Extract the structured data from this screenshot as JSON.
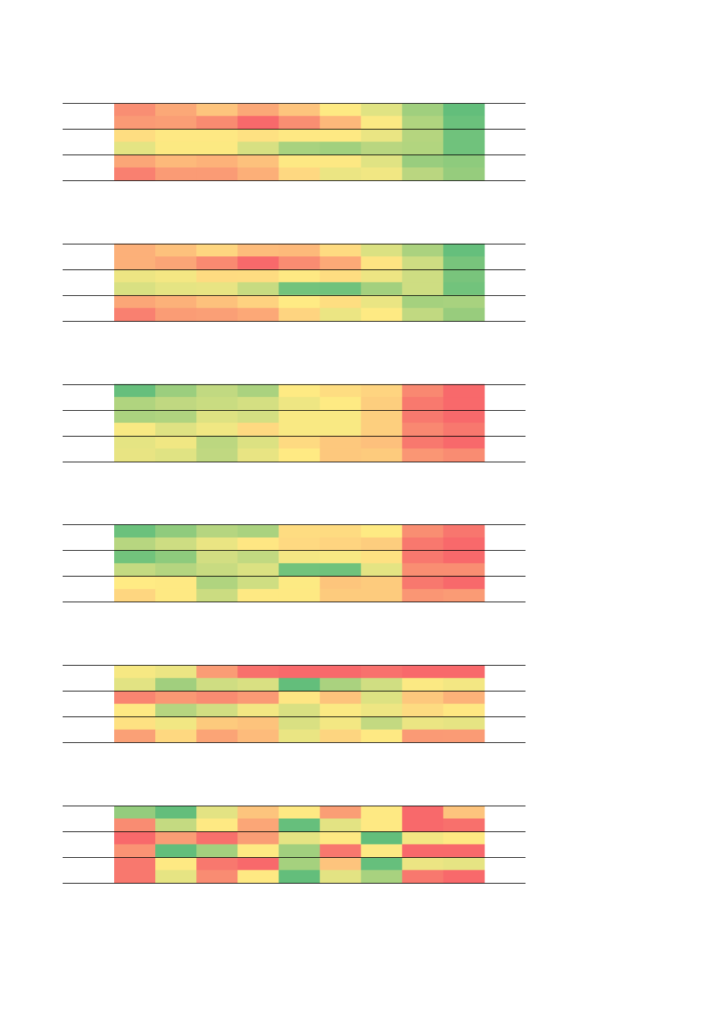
{
  "tables": [
    {
      "cells": [
        [
          "#f98e73",
          "#fba877",
          "#fdc47d",
          "#fba877",
          "#fdc47d",
          "#feea83",
          "#e0e383",
          "#a0cf7e",
          "#63be7b"
        ],
        [
          "#fa9a75",
          "#fa9e75",
          "#f98b71",
          "#f8696b",
          "#f98e72",
          "#fdb87a",
          "#fbe983",
          "#b0d47f",
          "#6bc17c"
        ],
        [
          "#fedd81",
          "#fee883",
          "#fee883",
          "#fee182",
          "#fee883",
          "#fee983",
          "#eae583",
          "#b5d57f",
          "#70c27c"
        ],
        [
          "#e4e483",
          "#fce982",
          "#fce982",
          "#d7e082",
          "#a8d27f",
          "#a2d07e",
          "#b9d680",
          "#b2d57f",
          "#70c27c"
        ],
        [
          "#fba677",
          "#fdb97a",
          "#fdb279",
          "#fdc17c",
          "#fde883",
          "#fde883",
          "#e0e383",
          "#99cd7e",
          "#8ecb7d"
        ],
        [
          "#f98070",
          "#fa9b75",
          "#fa9b75",
          "#fcaf78",
          "#fed881",
          "#ebe583",
          "#f1e783",
          "#bad680",
          "#96cc7d"
        ]
      ]
    },
    {
      "cells": [
        [
          "#fcb079",
          "#fdc17c",
          "#fed680",
          "#fdbc7b",
          "#fdb97a",
          "#fedb81",
          "#dbe182",
          "#abd27f",
          "#65bf7c"
        ],
        [
          "#fcb079",
          "#fba577",
          "#f98a71",
          "#f8696b",
          "#f98c72",
          "#fca977",
          "#fee482",
          "#cedd82",
          "#78c47c"
        ],
        [
          "#ede583",
          "#f4e783",
          "#fedb81",
          "#fedc81",
          "#fee983",
          "#fedd81",
          "#ede583",
          "#cedd82",
          "#79c47c"
        ],
        [
          "#d9e082",
          "#e5e483",
          "#e8e483",
          "#c7db81",
          "#72c37c",
          "#70c27c",
          "#a3d07e",
          "#cedd82",
          "#72c37c"
        ],
        [
          "#fba677",
          "#fcb179",
          "#fdc17c",
          "#fed280",
          "#ffeb84",
          "#fede81",
          "#eae583",
          "#a5d17e",
          "#a8d27f"
        ],
        [
          "#f98070",
          "#fa9c75",
          "#fa9f76",
          "#fca877",
          "#fed480",
          "#ebe583",
          "#feea83",
          "#c1d981",
          "#98cc7d"
        ]
      ]
    },
    {
      "cells": [
        [
          "#66bf7c",
          "#9bce7e",
          "#c1d981",
          "#aad27f",
          "#feea83",
          "#fedd81",
          "#fed480",
          "#f98871",
          "#f8696b"
        ],
        [
          "#b0d47f",
          "#c0d881",
          "#c9dc81",
          "#d4df82",
          "#eee683",
          "#feea83",
          "#fdce7e",
          "#f8796e",
          "#f8696b"
        ],
        [
          "#abd27f",
          "#b0d47f",
          "#dee282",
          "#d4df82",
          "#f9e983",
          "#f9e983",
          "#fdcf7e",
          "#f8796e",
          "#f8696b"
        ],
        [
          "#f8e983",
          "#dfe283",
          "#f0e783",
          "#fed981",
          "#f9e983",
          "#f9e983",
          "#fdcf7e",
          "#f98871",
          "#f8786e"
        ],
        [
          "#e5e483",
          "#f0e783",
          "#bcd780",
          "#dce182",
          "#feda81",
          "#fdc87d",
          "#fdc07c",
          "#f8786e",
          "#f8696b"
        ],
        [
          "#e8e483",
          "#e0e383",
          "#c0d881",
          "#e8e483",
          "#ffea83",
          "#fdc87d",
          "#fdcb7d",
          "#fa9674",
          "#f98c72"
        ]
      ]
    },
    {
      "cells": [
        [
          "#6bc17c",
          "#8fcb7d",
          "#b5d580",
          "#aad27f",
          "#fedc81",
          "#fedb81",
          "#feea83",
          "#f98e72",
          "#f8766e"
        ],
        [
          "#b7d680",
          "#cddd82",
          "#eae583",
          "#fee683",
          "#fed981",
          "#fed480",
          "#fdcd7e",
          "#f8786e",
          "#f8696b"
        ],
        [
          "#72c37c",
          "#8ecb7d",
          "#d2de82",
          "#c1d981",
          "#f4e783",
          "#f8e883",
          "#fee182",
          "#f8786e",
          "#f8696b"
        ],
        [
          "#c4da81",
          "#b5d580",
          "#c8db81",
          "#dbe182",
          "#72c37c",
          "#6fc27c",
          "#e4e483",
          "#f98e72",
          "#f98e72"
        ],
        [
          "#ffeb84",
          "#fee983",
          "#b0d47f",
          "#cfde82",
          "#fdea83",
          "#fdc57c",
          "#fdcb7d",
          "#f8786e",
          "#f8696b"
        ],
        [
          "#fed680",
          "#fee983",
          "#cbdc81",
          "#fee983",
          "#fee983",
          "#fdcb7d",
          "#fdcb7d",
          "#fa9674",
          "#fa9b75"
        ]
      ]
    },
    {
      "cells": [
        [
          "#f6e883",
          "#ece583",
          "#fa9c75",
          "#f8706c",
          "#f8696b",
          "#f8696b",
          "#f8716d",
          "#f8696b",
          "#f8696b"
        ],
        [
          "#e2e383",
          "#a1cf7e",
          "#cfdd82",
          "#d9e082",
          "#63be7b",
          "#aad27f",
          "#d0de82",
          "#fbe983",
          "#f3e783"
        ],
        [
          "#f98571",
          "#fa9874",
          "#f98c72",
          "#fa9a75",
          "#fee683",
          "#fdc37c",
          "#dde282",
          "#fdc87d",
          "#fcb279"
        ],
        [
          "#fee983",
          "#b6d580",
          "#d2de82",
          "#f3e783",
          "#d9e082",
          "#fbe983",
          "#eee683",
          "#fddb81",
          "#fee782"
        ],
        [
          "#fee182",
          "#f1e783",
          "#fdca7d",
          "#fdc37c",
          "#d9e082",
          "#f3e783",
          "#c3d981",
          "#ebe583",
          "#e6e483"
        ],
        [
          "#faa076",
          "#fed880",
          "#fba476",
          "#fdbb7b",
          "#eae583",
          "#fdd580",
          "#fee983",
          "#fa9a75",
          "#fa9b75"
        ]
      ]
    },
    {
      "cells": [
        [
          "#94cc7d",
          "#63be7b",
          "#e3e383",
          "#fdc47d",
          "#fee983",
          "#fa9e75",
          "#fee983",
          "#f8696b",
          "#fdc47d"
        ],
        [
          "#f98c72",
          "#c4da81",
          "#fee983",
          "#fba677",
          "#66bf7c",
          "#e3e383",
          "#fee983",
          "#f8696b",
          "#f8706c"
        ],
        [
          "#f8696b",
          "#fa9d75",
          "#f8706c",
          "#fa9d75",
          "#e5e483",
          "#fee983",
          "#63be7b",
          "#f3e783",
          "#fee983"
        ],
        [
          "#fa9374",
          "#63be7b",
          "#a3d07e",
          "#fee983",
          "#a1cf7e",
          "#f8786e",
          "#fee983",
          "#f8696b",
          "#f8696b"
        ],
        [
          "#f8786e",
          "#fee983",
          "#f8786e",
          "#f8696b",
          "#a5d17e",
          "#fdc47d",
          "#66bf7c",
          "#ece583",
          "#e6e483"
        ],
        [
          "#f8786e",
          "#e6e483",
          "#f98c72",
          "#fee983",
          "#63be7b",
          "#e3e383",
          "#a8d27f",
          "#f8786e",
          "#f8696b"
        ]
      ]
    }
  ]
}
